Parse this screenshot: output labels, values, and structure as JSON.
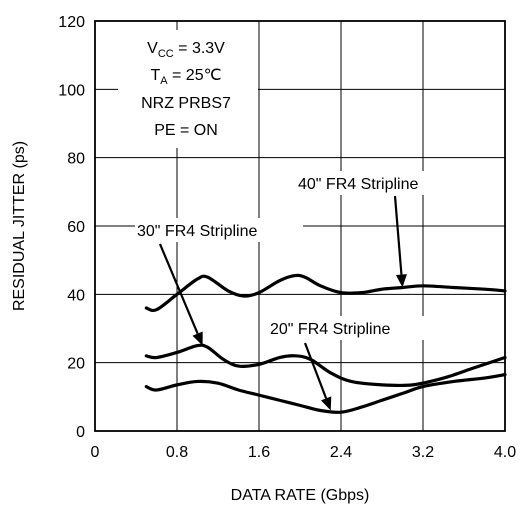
{
  "chart_data": {
    "type": "line",
    "xlabel": "DATA RATE (Gbps)",
    "ylabel": "RESIDUAL JITTER (ps)",
    "xlim": [
      0,
      4.0
    ],
    "ylim": [
      0,
      120
    ],
    "xticks": [
      "0",
      "0.8",
      "1.6",
      "2.4",
      "3.2",
      "4.0"
    ],
    "yticks": [
      "0",
      "20",
      "40",
      "60",
      "80",
      "100",
      "120"
    ],
    "grid": true,
    "conditions": {
      "vcc_main": "V",
      "vcc_sub": "CC",
      "vcc_rest": " = 3.3V",
      "ta_main": "T",
      "ta_sub": "A",
      "ta_rest": " = 25℃",
      "pattern": "NRZ PRBS7",
      "pe": "PE = ON"
    },
    "series": [
      {
        "name": "40\" FR4 Stripline",
        "x": [
          0.5,
          0.6,
          0.8,
          1.0,
          1.1,
          1.3,
          1.45,
          1.6,
          1.8,
          1.95,
          2.05,
          2.2,
          2.4,
          2.6,
          2.8,
          3.0,
          3.2,
          3.5,
          3.8,
          4.0
        ],
        "y": [
          36,
          35.5,
          40,
          44.5,
          45,
          41,
          39.5,
          40.5,
          44,
          45.5,
          45,
          42.5,
          40.5,
          40.5,
          41.5,
          42,
          42.5,
          42,
          41.5,
          41
        ]
      },
      {
        "name": "30\" FR4 Stripline",
        "x": [
          0.5,
          0.6,
          0.8,
          1.0,
          1.1,
          1.25,
          1.4,
          1.6,
          1.8,
          1.95,
          2.1,
          2.3,
          2.5,
          2.8,
          3.1,
          3.4,
          3.7,
          4.0
        ],
        "y": [
          22,
          21.5,
          23,
          25,
          24.5,
          21,
          19,
          19.5,
          21.5,
          22,
          21,
          17,
          14.5,
          13.5,
          13.5,
          15.5,
          18.5,
          21.5
        ]
      },
      {
        "name": "20\" FR4 Stripline",
        "x": [
          0.5,
          0.6,
          0.8,
          1.0,
          1.2,
          1.4,
          1.6,
          1.8,
          2.0,
          2.2,
          2.4,
          2.6,
          2.8,
          3.0,
          3.2,
          3.5,
          3.8,
          4.0
        ],
        "y": [
          13,
          12,
          13.5,
          14.5,
          14,
          12,
          10.5,
          9,
          7.5,
          6,
          5.5,
          7,
          9,
          11,
          13,
          14.5,
          15.5,
          16.5
        ]
      }
    ],
    "annotations": [
      {
        "text": "40\" FR4 Stripline",
        "series": 0,
        "arrow_to": [
          3.0,
          42
        ]
      },
      {
        "text": "30\" FR4 Stripline",
        "series": 1,
        "arrow_to": [
          1.05,
          25
        ]
      },
      {
        "text": "20\" FR4 Stripline",
        "series": 2,
        "arrow_to": [
          2.3,
          6
        ]
      }
    ]
  }
}
